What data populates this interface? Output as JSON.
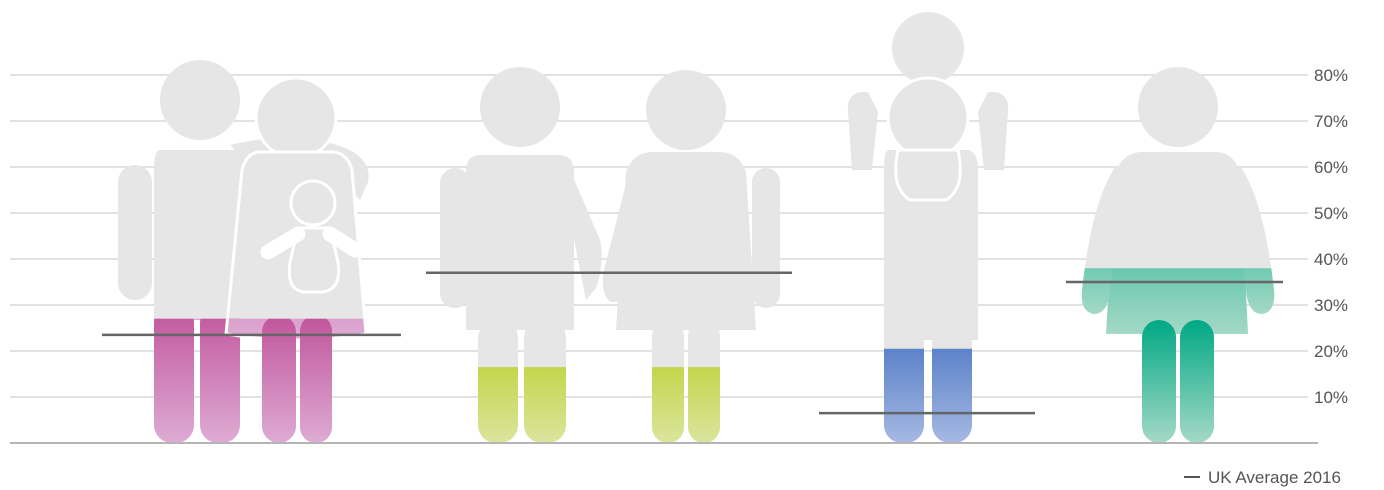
{
  "chart_data": {
    "type": "bar",
    "ylim": [
      0,
      85
    ],
    "y_ticks": [
      "10%",
      "20%",
      "30%",
      "40%",
      "50%",
      "60%",
      "70%",
      "80%"
    ],
    "grid": true,
    "legend": {
      "label": "UK Average 2016",
      "placement": "bottom-right"
    },
    "categories_icons": [
      "couple-with-baby-icon",
      "couple-icon",
      "parent-with-child-icon",
      "woman-icon"
    ],
    "values": [
      27,
      16.5,
      20.5,
      38
    ],
    "uk_average": [
      23.5,
      37,
      6.5,
      35
    ],
    "colors": [
      "#c0549b",
      "#b5cc18",
      "#4a75c2",
      "#00a884"
    ],
    "light_colors": [
      "#deabd4",
      "#dbe59e",
      "#a5b9e3",
      "#a4d9c6"
    ]
  }
}
